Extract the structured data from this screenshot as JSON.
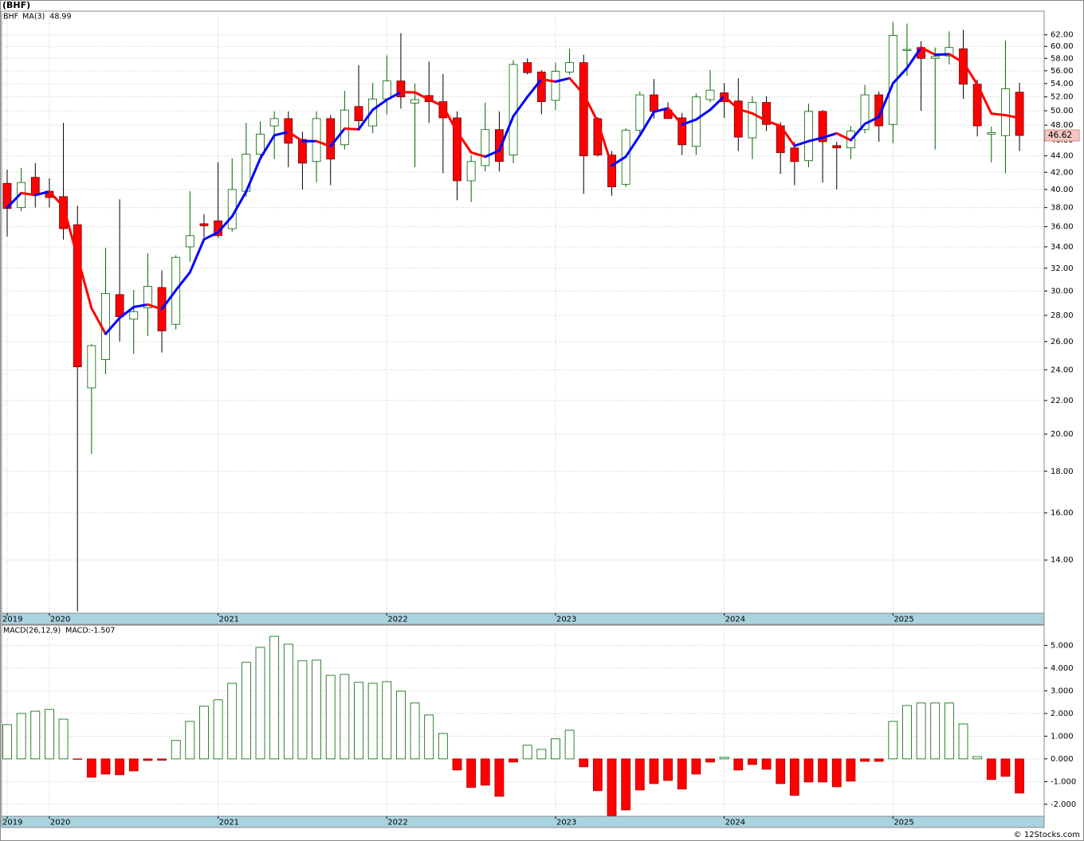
{
  "title": "(BHF)",
  "footer": "© 12Stocks.com",
  "chart_data": [
    {
      "type": "candlestick",
      "log_scale": true,
      "grid": true,
      "categories": [
        "2019",
        null,
        null,
        "2020",
        null,
        null,
        null,
        null,
        null,
        null,
        null,
        null,
        null,
        null,
        null,
        "2021",
        null,
        null,
        null,
        null,
        null,
        null,
        null,
        null,
        null,
        null,
        null,
        "2022",
        null,
        null,
        null,
        null,
        null,
        null,
        null,
        null,
        null,
        null,
        null,
        "2023",
        null,
        null,
        null,
        null,
        null,
        null,
        null,
        null,
        null,
        null,
        null,
        "2024",
        null,
        null,
        null,
        null,
        null,
        null,
        null,
        null,
        null,
        null,
        null,
        "2025",
        null,
        null,
        null,
        null,
        null,
        null,
        null,
        null,
        null
      ],
      "ylim": [
        12.04,
        66.3
      ],
      "yticks": [
        {
          "value": 14,
          "label": "14.00"
        },
        {
          "value": 16,
          "label": "16.00"
        },
        {
          "value": 18,
          "label": "18.00"
        },
        {
          "value": 20,
          "label": "20.00"
        },
        {
          "value": 22,
          "label": "22.00"
        },
        {
          "value": 24,
          "label": "24.00"
        },
        {
          "value": 26,
          "label": "26.00"
        },
        {
          "value": 28,
          "label": "28.00"
        },
        {
          "value": 30,
          "label": "30.00"
        },
        {
          "value": 32,
          "label": "32.00"
        },
        {
          "value": 34,
          "label": "34.00"
        },
        {
          "value": 36,
          "label": "36.00"
        },
        {
          "value": 38,
          "label": "38.00"
        },
        {
          "value": 40,
          "label": "40.00"
        },
        {
          "value": 42,
          "label": "42.00"
        },
        {
          "value": 44,
          "label": "44.00"
        },
        {
          "value": 46,
          "label": "46.00"
        },
        {
          "value": 48,
          "label": "48.00"
        },
        {
          "value": 50,
          "label": "50.00"
        },
        {
          "value": 52,
          "label": "52.00"
        },
        {
          "value": 54,
          "label": "54.00"
        },
        {
          "value": 56,
          "label": "56.00"
        },
        {
          "value": 58,
          "label": "58.00"
        },
        {
          "value": 60,
          "label": "60.00"
        },
        {
          "value": 62,
          "label": "62.00"
        }
      ],
      "series": [
        {
          "name": "BHF",
          "color": "#006400",
          "down_color": "#ff0000",
          "open": [
            40.7,
            38.0,
            41.4,
            39.8,
            39.2,
            36.2,
            22.8,
            24.7,
            29.7,
            27.7,
            28.6,
            30.3,
            27.3,
            34.0,
            36.3,
            36.6,
            35.8,
            39.8,
            44.2,
            47.9,
            48.9,
            46.1,
            43.3,
            48.9,
            45.4,
            50.6,
            47.9,
            51.7,
            54.4,
            51.1,
            52.2,
            51.3,
            49.0,
            41.0,
            42.8,
            47.4,
            44.1,
            57.3,
            55.8,
            51.5,
            55.8,
            57.3,
            48.9,
            44.1,
            40.6,
            47.3,
            52.3,
            50.1,
            49.0,
            45.2,
            51.6,
            52.6,
            51.4,
            46.3,
            51.2,
            47.9,
            45.0,
            43.4,
            49.9,
            45.3,
            45.0,
            47.4,
            52.3,
            48.1,
            59.3,
            59.8,
            58.0,
            58.4,
            59.6,
            53.9,
            46.8,
            46.6,
            52.7
          ],
          "high": [
            42.3,
            42.5,
            43.1,
            41.3,
            48.3,
            38.2,
            25.8,
            33.9,
            38.9,
            30.1,
            33.4,
            31.8,
            33.2,
            39.8,
            37.3,
            43.2,
            43.7,
            48.3,
            48.5,
            49.9,
            49.9,
            47.1,
            49.9,
            49.4,
            52.9,
            56.9,
            54.1,
            58.5,
            62.3,
            54.0,
            57.5,
            55.5,
            49.9,
            44.1,
            51.2,
            49.9,
            57.7,
            58.0,
            56.1,
            57.3,
            59.6,
            58.6,
            49.1,
            44.6,
            47.6,
            52.8,
            54.7,
            51.2,
            49.7,
            52.5,
            56.1,
            54.1,
            54.8,
            52.1,
            52.1,
            48.4,
            45.8,
            51.0,
            50.1,
            45.8,
            47.9,
            53.8,
            52.8,
            64.3,
            64.0,
            60.9,
            59.8,
            62.6,
            62.9,
            54.6,
            47.8,
            61.0,
            54.1
          ],
          "low": [
            35.0,
            37.6,
            38.0,
            38.0,
            34.7,
            12.1,
            18.9,
            23.7,
            26.0,
            25.1,
            26.4,
            25.2,
            26.9,
            32.6,
            34.9,
            34.9,
            35.5,
            39.2,
            44.0,
            43.6,
            42.6,
            40.0,
            40.8,
            40.5,
            44.8,
            47.5,
            46.9,
            49.5,
            50.3,
            42.6,
            48.3,
            41.9,
            38.8,
            38.6,
            42.1,
            42.1,
            43.1,
            55.4,
            49.5,
            50.1,
            55.4,
            39.5,
            43.9,
            39.3,
            40.3,
            46.6,
            48.9,
            48.9,
            44.1,
            44.1,
            51.2,
            49.0,
            44.6,
            43.6,
            47.2,
            41.8,
            40.5,
            42.6,
            40.8,
            40.0,
            43.6,
            46.9,
            45.8,
            45.6,
            55.2,
            50.0,
            44.8,
            57.0,
            51.7,
            46.5,
            43.2,
            41.9,
            44.6
          ],
          "close": [
            37.9,
            40.8,
            39.4,
            39.1,
            35.8,
            24.2,
            25.7,
            29.8,
            27.9,
            28.3,
            30.4,
            26.8,
            33.0,
            35.1,
            36.1,
            35.1,
            40.0,
            44.2,
            46.8,
            48.9,
            45.6,
            43.1,
            48.9,
            43.6,
            50.1,
            48.6,
            51.7,
            54.4,
            52.0,
            51.6,
            51.3,
            49.0,
            41.0,
            43.3,
            47.4,
            43.3,
            57.0,
            55.7,
            51.3,
            55.9,
            57.3,
            44.0,
            44.1,
            40.3,
            47.3,
            52.3,
            49.9,
            48.9,
            45.4,
            52.0,
            53.0,
            51.3,
            46.4,
            51.2,
            48.1,
            44.4,
            43.3,
            49.9,
            45.8,
            45.0,
            47.2,
            52.3,
            47.9,
            61.9,
            59.5,
            58.0,
            58.3,
            59.8,
            53.9,
            47.9,
            47.0,
            53.2,
            46.62
          ]
        },
        {
          "name": "MA(3)",
          "type": "line",
          "color": "#0000ff",
          "down_color": "#ff0000",
          "values": [
            38.0,
            39.6,
            39.37,
            39.77,
            38.1,
            33.03,
            28.57,
            26.57,
            27.8,
            28.67,
            28.87,
            28.5,
            30.07,
            31.63,
            34.73,
            35.43,
            37.07,
            39.77,
            43.67,
            46.63,
            47.1,
            45.87,
            45.87,
            45.2,
            47.53,
            47.43,
            50.13,
            51.57,
            52.7,
            52.67,
            51.63,
            50.63,
            47.1,
            44.43,
            43.9,
            44.67,
            49.23,
            52.0,
            54.67,
            54.3,
            54.83,
            52.4,
            48.47,
            42.8,
            43.9,
            46.63,
            49.83,
            50.37,
            48.07,
            48.77,
            50.13,
            52.1,
            50.23,
            49.63,
            48.57,
            47.9,
            45.27,
            45.87,
            46.33,
            46.9,
            46.0,
            48.17,
            49.13,
            54.03,
            56.43,
            59.8,
            58.6,
            58.7,
            57.33,
            53.87,
            49.6,
            49.37,
            48.99
          ]
        }
      ]
    },
    {
      "type": "bar",
      "title": "MACD(26,12,9)",
      "grid": true,
      "categories": [
        "2019",
        null,
        null,
        "2020",
        null,
        null,
        null,
        null,
        null,
        null,
        null,
        null,
        null,
        null,
        null,
        "2021",
        null,
        null,
        null,
        null,
        null,
        null,
        null,
        null,
        null,
        null,
        null,
        "2022",
        null,
        null,
        null,
        null,
        null,
        null,
        null,
        null,
        null,
        null,
        null,
        "2023",
        null,
        null,
        null,
        null,
        null,
        null,
        null,
        null,
        null,
        null,
        null,
        "2024",
        null,
        null,
        null,
        null,
        null,
        null,
        null,
        null,
        null,
        null,
        null,
        "2025",
        null,
        null,
        null,
        null,
        null,
        null,
        null,
        null,
        null
      ],
      "ylim": [
        -2.53,
        5.89
      ],
      "yticks": [
        {
          "value": -2,
          "label": "-2.000"
        },
        {
          "value": -1,
          "label": "-1.000"
        },
        {
          "value": 0,
          "label": "0.000"
        },
        {
          "value": 1,
          "label": "1.000"
        },
        {
          "value": 2,
          "label": "2.000"
        },
        {
          "value": 3,
          "label": "3.000"
        },
        {
          "value": 4,
          "label": "4.000"
        },
        {
          "value": 5,
          "label": "5.000"
        }
      ],
      "series": [
        {
          "name": "MACD:",
          "color": "#006400",
          "down_color": "#ff0000",
          "values": [
            1.51,
            2.0,
            2.1,
            2.18,
            1.75,
            -0.02,
            -0.81,
            -0.67,
            -0.7,
            -0.53,
            -0.07,
            -0.06,
            0.81,
            1.65,
            2.32,
            2.6,
            3.33,
            4.25,
            4.91,
            5.4,
            5.05,
            4.32,
            4.35,
            3.68,
            3.72,
            3.37,
            3.33,
            3.4,
            2.98,
            2.46,
            1.93,
            1.12,
            -0.49,
            -1.26,
            -1.16,
            -1.65,
            -0.14,
            0.6,
            0.42,
            0.88,
            1.26,
            -0.35,
            -1.4,
            -2.5,
            -2.25,
            -1.37,
            -1.09,
            -0.95,
            -1.33,
            -0.67,
            -0.14,
            0.07,
            -0.49,
            -0.25,
            -0.46,
            -1.09,
            -1.61,
            -1.02,
            -1.02,
            -1.23,
            -0.98,
            -0.11,
            -0.11,
            1.65,
            2.35,
            2.46,
            2.46,
            2.46,
            1.54,
            0.1,
            -0.91,
            -0.77,
            -1.507
          ]
        }
      ]
    }
  ]
}
